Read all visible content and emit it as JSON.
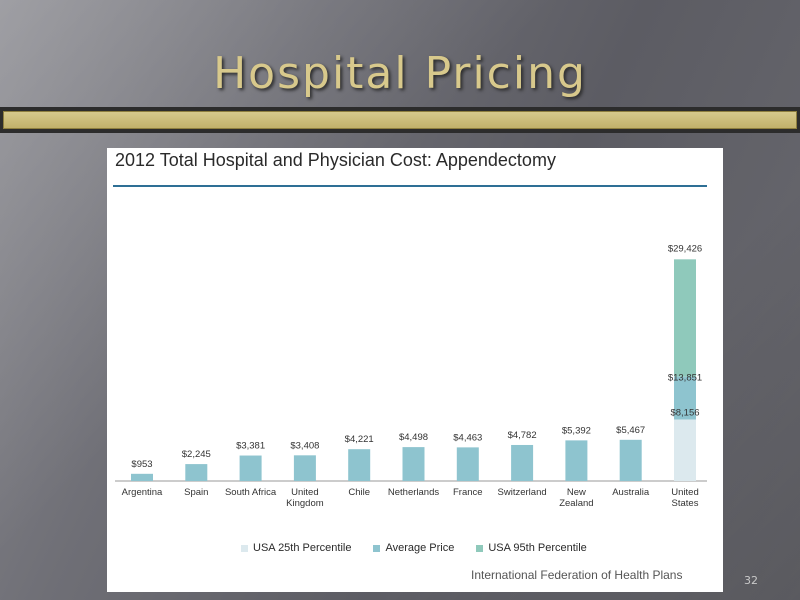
{
  "slide": {
    "title": "Hospital Pricing",
    "page_number": "32",
    "source": "International Federation of Health Plans"
  },
  "colors": {
    "background": "#6a6a70",
    "title_gold": "#d8c98c",
    "bar_gold": "#cbbd7b",
    "average_bar": "#8ec4cf",
    "p25_bar": "#dce9ee",
    "p95_bar": "#8fc9bb",
    "title_rule": "#2e6f95"
  },
  "chart_data": {
    "type": "bar",
    "title": "2012 Total Hospital and Physician Cost: Appendectomy",
    "categories": [
      "Argentina",
      "Spain",
      "South Africa",
      "United Kingdom",
      "Chile",
      "Netherlands",
      "France",
      "Switzerland",
      "New Zealand",
      "Australia",
      "United States"
    ],
    "series": [
      {
        "name": "Average Price",
        "values": [
          953,
          2245,
          3381,
          3408,
          4221,
          4498,
          4463,
          4782,
          5392,
          5467,
          13851
        ],
        "labels": [
          "$953",
          "$2,245",
          "$3,381",
          "$3,408",
          "$4,221",
          "$4,498",
          "$4,463",
          "$4,782",
          "$5,392",
          "$5,467",
          "$13,851"
        ]
      }
    ],
    "us_range": {
      "category": "United States",
      "p25": 8156,
      "p25_label": "$8,156",
      "avg": 13851,
      "p95": 29426,
      "p95_label": "$29,426"
    },
    "ylim": [
      0,
      30000
    ],
    "grid": false,
    "legend": {
      "placement": "bottom",
      "entries": [
        {
          "name": "USA 25th Percentile",
          "color": "#dce9ee"
        },
        {
          "name": "Average Price",
          "color": "#8ec4cf"
        },
        {
          "name": "USA  95th Percentile",
          "color": "#8fc9bb"
        }
      ]
    }
  }
}
